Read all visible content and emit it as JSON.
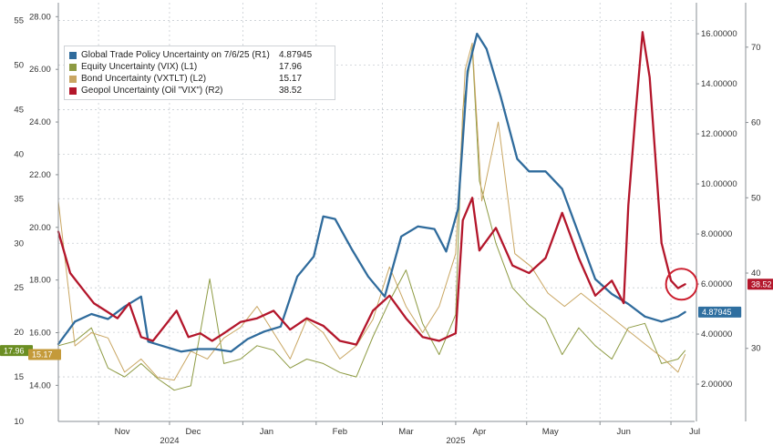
{
  "chart_data": {
    "type": "line",
    "title": "",
    "x_range": [
      "2024-10-15",
      "2025-07-11"
    ],
    "x_ticks": [
      {
        "label": "Nov",
        "date": "2024-11-01"
      },
      {
        "label": "Dec",
        "date": "2024-12-01"
      },
      {
        "label": "Jan",
        "date": "2025-01-01"
      },
      {
        "label": "Feb",
        "date": "2025-02-01"
      },
      {
        "label": "Mar",
        "date": "2025-03-01"
      },
      {
        "label": "Apr",
        "date": "2025-04-01"
      },
      {
        "label": "May",
        "date": "2025-05-01"
      },
      {
        "label": "Jun",
        "date": "2025-06-01"
      },
      {
        "label": "Jul",
        "date": "2025-07-01"
      }
    ],
    "year_labels": [
      {
        "label": "2024",
        "date": "2024-12-01"
      },
      {
        "label": "2025",
        "date": "2025-04-01"
      }
    ],
    "axes": {
      "L1": {
        "range": [
          10,
          57
        ],
        "ticks": [
          10,
          15,
          20,
          25,
          30,
          35,
          40,
          45,
          50,
          55
        ],
        "tick_labels": [
          "10",
          "15",
          "20",
          "25",
          "30",
          "35",
          "40",
          "45",
          "50",
          "55"
        ],
        "color": "#6b8e23"
      },
      "L2": {
        "range": [
          12.63,
          28.53
        ],
        "ticks": [
          14,
          16,
          18,
          20,
          22,
          24,
          26,
          28
        ],
        "tick_labels": [
          "14.00",
          "16.00",
          "18.00",
          "20.00",
          "22.00",
          "24.00",
          "26.00",
          "28.00"
        ],
        "color": "#c49a3a"
      },
      "R1": {
        "range": [
          0.51,
          17.24
        ],
        "ticks": [
          2,
          4,
          6,
          8,
          10,
          12,
          14,
          16
        ],
        "tick_labels": [
          "2.00000",
          "4.00000",
          "6.00000",
          "8.00000",
          "10.00000",
          "12.00000",
          "14.00000",
          "16.00000"
        ],
        "color": "#2f6fa0"
      },
      "R2": {
        "range": [
          20.3,
          75.9
        ],
        "ticks": [
          30,
          40,
          50,
          60,
          70
        ],
        "tick_labels": [
          "30",
          "40",
          "50",
          "60",
          "70"
        ],
        "color": "#b01c2e"
      }
    },
    "grid": true,
    "legend_position": "top-left",
    "series": [
      {
        "name": "Global Trade Policy Uncertainty on 7/6/25 (R1)",
        "legend_value": "4.87945",
        "axis": "R1",
        "color": "#2f6b9c",
        "width": 2.3,
        "points": [
          [
            "2024-10-15",
            3.6
          ],
          [
            "2024-10-22",
            4.5
          ],
          [
            "2024-10-29",
            4.8
          ],
          [
            "2024-11-05",
            4.6
          ],
          [
            "2024-11-12",
            5.1
          ],
          [
            "2024-11-19",
            5.5
          ],
          [
            "2024-11-22",
            3.7
          ],
          [
            "2024-11-29",
            3.5
          ],
          [
            "2024-12-06",
            3.3
          ],
          [
            "2024-12-13",
            3.4
          ],
          [
            "2024-12-20",
            3.4
          ],
          [
            "2024-12-27",
            3.3
          ],
          [
            "2025-01-03",
            3.8
          ],
          [
            "2025-01-10",
            4.1
          ],
          [
            "2025-01-17",
            4.3
          ],
          [
            "2025-01-24",
            6.3
          ],
          [
            "2025-01-31",
            7.1
          ],
          [
            "2025-02-04",
            8.7
          ],
          [
            "2025-02-09",
            8.6
          ],
          [
            "2025-02-16",
            7.4
          ],
          [
            "2025-02-23",
            6.3
          ],
          [
            "2025-03-02",
            5.5
          ],
          [
            "2025-03-09",
            7.9
          ],
          [
            "2025-03-16",
            8.3
          ],
          [
            "2025-03-23",
            8.2
          ],
          [
            "2025-03-28",
            7.3
          ],
          [
            "2025-04-02",
            9.0
          ],
          [
            "2025-04-06",
            14.5
          ],
          [
            "2025-04-10",
            16.0
          ],
          [
            "2025-04-14",
            15.4
          ],
          [
            "2025-04-20",
            13.5
          ],
          [
            "2025-04-27",
            11.0
          ],
          [
            "2025-05-02",
            10.5
          ],
          [
            "2025-05-09",
            10.5
          ],
          [
            "2025-05-16",
            9.8
          ],
          [
            "2025-05-23",
            8.0
          ],
          [
            "2025-05-30",
            6.2
          ],
          [
            "2025-06-06",
            5.6
          ],
          [
            "2025-06-13",
            5.2
          ],
          [
            "2025-06-20",
            4.7
          ],
          [
            "2025-06-27",
            4.5
          ],
          [
            "2025-07-04",
            4.7
          ],
          [
            "2025-07-07",
            4.88
          ]
        ]
      },
      {
        "name": "Equity Uncertainty (VIX) (L1)",
        "legend_value": "17.96",
        "axis": "L1",
        "color": "#8d9a42",
        "width": 1.0,
        "points": [
          [
            "2024-10-15",
            18.5
          ],
          [
            "2024-10-22",
            19.0
          ],
          [
            "2024-10-29",
            20.5
          ],
          [
            "2024-11-05",
            16.0
          ],
          [
            "2024-11-12",
            15.0
          ],
          [
            "2024-11-19",
            16.5
          ],
          [
            "2024-11-26",
            14.8
          ],
          [
            "2024-12-03",
            13.5
          ],
          [
            "2024-12-10",
            14.0
          ],
          [
            "2024-12-18",
            26.0
          ],
          [
            "2024-12-24",
            16.5
          ],
          [
            "2024-12-31",
            17.0
          ],
          [
            "2025-01-07",
            18.5
          ],
          [
            "2025-01-14",
            18.0
          ],
          [
            "2025-01-21",
            16.0
          ],
          [
            "2025-01-28",
            17.0
          ],
          [
            "2025-02-04",
            16.5
          ],
          [
            "2025-02-11",
            15.5
          ],
          [
            "2025-02-18",
            15.0
          ],
          [
            "2025-02-25",
            19.5
          ],
          [
            "2025-03-04",
            23.5
          ],
          [
            "2025-03-11",
            27.0
          ],
          [
            "2025-03-18",
            21.0
          ],
          [
            "2025-03-25",
            17.5
          ],
          [
            "2025-04-01",
            22.0
          ],
          [
            "2025-04-04",
            45.0
          ],
          [
            "2025-04-08",
            52.0
          ],
          [
            "2025-04-11",
            37.0
          ],
          [
            "2025-04-18",
            30.0
          ],
          [
            "2025-04-25",
            25.0
          ],
          [
            "2025-05-02",
            23.0
          ],
          [
            "2025-05-09",
            21.5
          ],
          [
            "2025-05-16",
            17.5
          ],
          [
            "2025-05-23",
            20.5
          ],
          [
            "2025-05-30",
            18.5
          ],
          [
            "2025-06-06",
            17.0
          ],
          [
            "2025-06-13",
            20.5
          ],
          [
            "2025-06-20",
            21.0
          ],
          [
            "2025-06-27",
            16.5
          ],
          [
            "2025-07-04",
            17.0
          ],
          [
            "2025-07-07",
            17.96
          ]
        ]
      },
      {
        "name": "Bond Uncertainty (VXTLT) (L2)",
        "legend_value": "15.17",
        "axis": "L2",
        "color": "#c9a662",
        "width": 1.0,
        "points": [
          [
            "2024-10-15",
            21.0
          ],
          [
            "2024-10-22",
            15.5
          ],
          [
            "2024-10-29",
            16.0
          ],
          [
            "2024-11-05",
            15.8
          ],
          [
            "2024-11-12",
            14.5
          ],
          [
            "2024-11-19",
            15.0
          ],
          [
            "2024-11-26",
            14.3
          ],
          [
            "2024-12-03",
            14.2
          ],
          [
            "2024-12-10",
            15.3
          ],
          [
            "2024-12-17",
            15.0
          ],
          [
            "2024-12-24",
            15.8
          ],
          [
            "2024-12-31",
            16.2
          ],
          [
            "2025-01-07",
            17.0
          ],
          [
            "2025-01-14",
            16.0
          ],
          [
            "2025-01-21",
            15.0
          ],
          [
            "2025-01-28",
            16.5
          ],
          [
            "2025-02-04",
            16.0
          ],
          [
            "2025-02-11",
            15.0
          ],
          [
            "2025-02-18",
            15.5
          ],
          [
            "2025-02-25",
            16.5
          ],
          [
            "2025-03-04",
            18.5
          ],
          [
            "2025-03-11",
            17.0
          ],
          [
            "2025-03-18",
            16.0
          ],
          [
            "2025-03-25",
            17.0
          ],
          [
            "2025-04-01",
            19.0
          ],
          [
            "2025-04-05",
            26.0
          ],
          [
            "2025-04-08",
            27.0
          ],
          [
            "2025-04-12",
            21.0
          ],
          [
            "2025-04-19",
            24.0
          ],
          [
            "2025-04-26",
            19.0
          ],
          [
            "2025-05-03",
            18.5
          ],
          [
            "2025-05-10",
            17.5
          ],
          [
            "2025-05-17",
            17.0
          ],
          [
            "2025-05-24",
            17.5
          ],
          [
            "2025-05-31",
            17.0
          ],
          [
            "2025-06-07",
            16.5
          ],
          [
            "2025-06-14",
            16.0
          ],
          [
            "2025-06-21",
            15.5
          ],
          [
            "2025-06-28",
            15.0
          ],
          [
            "2025-07-04",
            14.5
          ],
          [
            "2025-07-07",
            15.17
          ]
        ]
      },
      {
        "name": "Geopol Uncertainty (Oil \"VIX\") (R2)",
        "legend_value": "38.52",
        "axis": "R2",
        "color": "#b3162b",
        "width": 2.3,
        "points": [
          [
            "2024-10-15",
            45.5
          ],
          [
            "2024-10-20",
            40.0
          ],
          [
            "2024-10-25",
            38.0
          ],
          [
            "2024-10-30",
            36.0
          ],
          [
            "2024-11-04",
            35.0
          ],
          [
            "2024-11-09",
            34.0
          ],
          [
            "2024-11-14",
            36.0
          ],
          [
            "2024-11-19",
            31.5
          ],
          [
            "2024-11-24",
            31.0
          ],
          [
            "2024-11-29",
            33.0
          ],
          [
            "2024-12-04",
            35.0
          ],
          [
            "2024-12-09",
            31.5
          ],
          [
            "2024-12-14",
            32.0
          ],
          [
            "2024-12-19",
            31.0
          ],
          [
            "2024-12-24",
            32.0
          ],
          [
            "2024-12-31",
            33.5
          ],
          [
            "2025-01-07",
            34.0
          ],
          [
            "2025-01-14",
            35.0
          ],
          [
            "2025-01-21",
            32.5
          ],
          [
            "2025-01-28",
            34.0
          ],
          [
            "2025-02-04",
            33.0
          ],
          [
            "2025-02-11",
            31.0
          ],
          [
            "2025-02-18",
            30.5
          ],
          [
            "2025-02-25",
            35.0
          ],
          [
            "2025-03-04",
            37.0
          ],
          [
            "2025-03-11",
            34.0
          ],
          [
            "2025-03-18",
            31.5
          ],
          [
            "2025-03-25",
            31.0
          ],
          [
            "2025-04-01",
            32.0
          ],
          [
            "2025-04-04",
            47.0
          ],
          [
            "2025-04-08",
            50.0
          ],
          [
            "2025-04-11",
            43.0
          ],
          [
            "2025-04-18",
            46.0
          ],
          [
            "2025-04-25",
            41.0
          ],
          [
            "2025-05-02",
            40.0
          ],
          [
            "2025-05-09",
            42.0
          ],
          [
            "2025-05-16",
            48.0
          ],
          [
            "2025-05-23",
            42.0
          ],
          [
            "2025-05-30",
            37.0
          ],
          [
            "2025-06-06",
            39.0
          ],
          [
            "2025-06-11",
            36.0
          ],
          [
            "2025-06-13",
            49.0
          ],
          [
            "2025-06-16",
            61.0
          ],
          [
            "2025-06-19",
            72.0
          ],
          [
            "2025-06-22",
            66.0
          ],
          [
            "2025-06-27",
            44.0
          ],
          [
            "2025-07-01",
            39.0
          ],
          [
            "2025-07-04",
            38.0
          ],
          [
            "2025-07-07",
            38.52
          ]
        ]
      }
    ],
    "last_value_badges": [
      {
        "series": "Equity Uncertainty (VIX) (L1)",
        "axis": "L1",
        "side": "left",
        "value": 17.96,
        "label": "17.96",
        "color": "#6b8e23"
      },
      {
        "series": "Bond Uncertainty (VXTLT) (L2)",
        "axis": "L2",
        "side": "left",
        "value": 15.17,
        "label": "15.17",
        "color": "#c49a3a"
      },
      {
        "series": "Global Trade Policy Uncertainty on 7/6/25 (R1)",
        "axis": "R1",
        "side": "right",
        "value": 4.87945,
        "label": "4.87945",
        "color": "#2f6fa0"
      },
      {
        "series": "Geopol Uncertainty (Oil \"VIX\") (R2)",
        "axis": "R2",
        "side": "right",
        "value": 38.52,
        "label": "38.52",
        "color": "#b3162b"
      }
    ],
    "annotations": [
      {
        "type": "circle",
        "around": "latest Geopol Uncertainty value",
        "color": "#cc1f2f"
      }
    ]
  }
}
